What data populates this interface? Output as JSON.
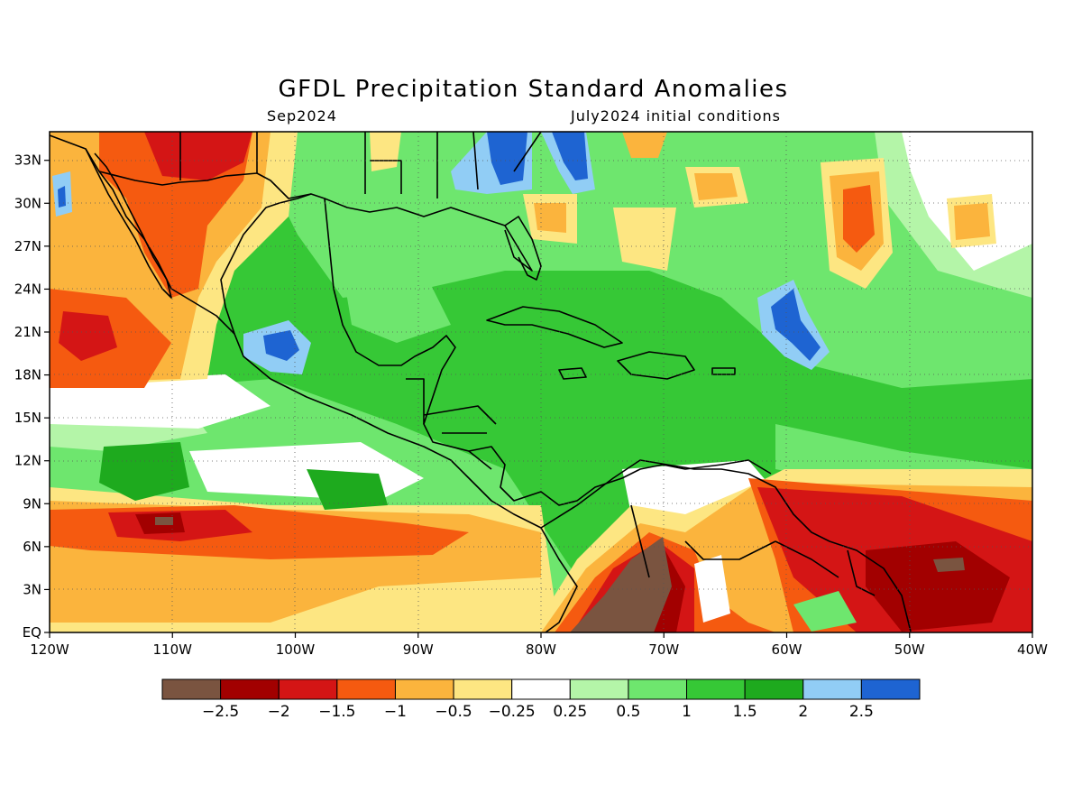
{
  "header": {
    "title": "GFDL Precipitation Standard Anomalies",
    "valid_month": "Sep2024",
    "init": "July2024 initial conditions"
  },
  "map": {
    "lon_range": [
      -120,
      -40
    ],
    "lat_range": [
      0,
      35
    ],
    "lon_ticks": [
      {
        "v": -120,
        "t": "120W"
      },
      {
        "v": -110,
        "t": "110W"
      },
      {
        "v": -100,
        "t": "100W"
      },
      {
        "v": -90,
        "t": "90W"
      },
      {
        "v": -80,
        "t": "80W"
      },
      {
        "v": -70,
        "t": "70W"
      },
      {
        "v": -60,
        "t": "60W"
      },
      {
        "v": -50,
        "t": "50W"
      },
      {
        "v": -40,
        "t": "40W"
      }
    ],
    "lat_ticks": [
      {
        "v": 0,
        "t": "EQ"
      },
      {
        "v": 3,
        "t": "3N"
      },
      {
        "v": 6,
        "t": "6N"
      },
      {
        "v": 9,
        "t": "9N"
      },
      {
        "v": 12,
        "t": "12N"
      },
      {
        "v": 15,
        "t": "15N"
      },
      {
        "v": 18,
        "t": "18N"
      },
      {
        "v": 21,
        "t": "21N"
      },
      {
        "v": 24,
        "t": "24N"
      },
      {
        "v": 27,
        "t": "27N"
      },
      {
        "v": 30,
        "t": "30N"
      },
      {
        "v": 33,
        "t": "33N"
      }
    ]
  },
  "colorbar": {
    "colors": [
      "#7a5440",
      "#a20000",
      "#d41515",
      "#f55a10",
      "#fbb43d",
      "#fde682",
      "#ffffff",
      "#b4f5a8",
      "#6ee66e",
      "#36c836",
      "#1eaa1e",
      "#91cdf5",
      "#1e64d2"
    ],
    "labels": [
      "-2.5",
      "-2",
      "-1.5",
      "-1",
      "-0.5",
      "-0.25",
      "0.25",
      "0.5",
      "1",
      "1.5",
      "2",
      "2.5"
    ]
  },
  "palette": {
    "green_base": "#36c836",
    "light_green": "#6ee66e",
    "pale_green": "#b4f5a8",
    "dark_green": "#1eaa1e",
    "light_blue": "#91cdf5",
    "blue": "#1e64d2",
    "pale_yellow": "#fde682",
    "orange_yellow": "#fbb43d",
    "orange": "#f55a10",
    "red": "#d41515",
    "dark_red": "#a20000",
    "brown": "#7a5440"
  }
}
